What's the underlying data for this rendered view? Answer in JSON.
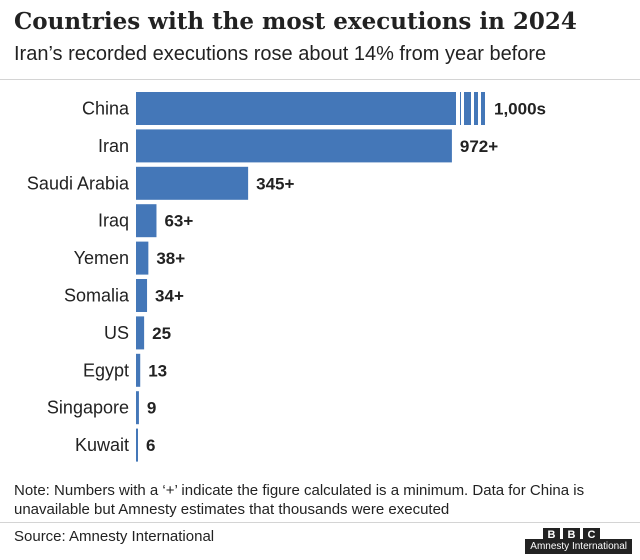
{
  "header": {
    "title": "Countries with the most executions in 2024",
    "subtitle": "Iran’s recorded executions rose about 14% from year before"
  },
  "colors": {
    "bar": "#4477b8",
    "text": "#222222"
  },
  "chart_data": {
    "type": "bar",
    "orientation": "horizontal",
    "categories": [
      "China",
      "Iran",
      "Saudi Arabia",
      "Iraq",
      "Yemen",
      "Somalia",
      "US",
      "Egypt",
      "Singapore",
      "Kuwait"
    ],
    "values": [
      1000,
      972,
      345,
      63,
      38,
      34,
      25,
      13,
      9,
      6
    ],
    "data_labels": [
      "1,000s",
      "972+",
      "345+",
      "63+",
      "38+",
      "34+",
      "25",
      "13",
      "9",
      "6"
    ],
    "broken_bar": "China",
    "title": "Countries with the most executions in 2024",
    "subtitle": "Iran’s recorded executions rose about 14% from year before",
    "xlabel": "",
    "ylabel": "",
    "grid": false,
    "legend": "none"
  },
  "footer": {
    "note": "Note: Numbers with a ‘+’ indicate the figure calculated is a minimum. Data for China is unavailable but Amnesty estimates that thousands were executed",
    "source": "Source: Amnesty International",
    "logo_letters": [
      "B",
      "B",
      "C"
    ],
    "credit": "Amnesty International"
  }
}
